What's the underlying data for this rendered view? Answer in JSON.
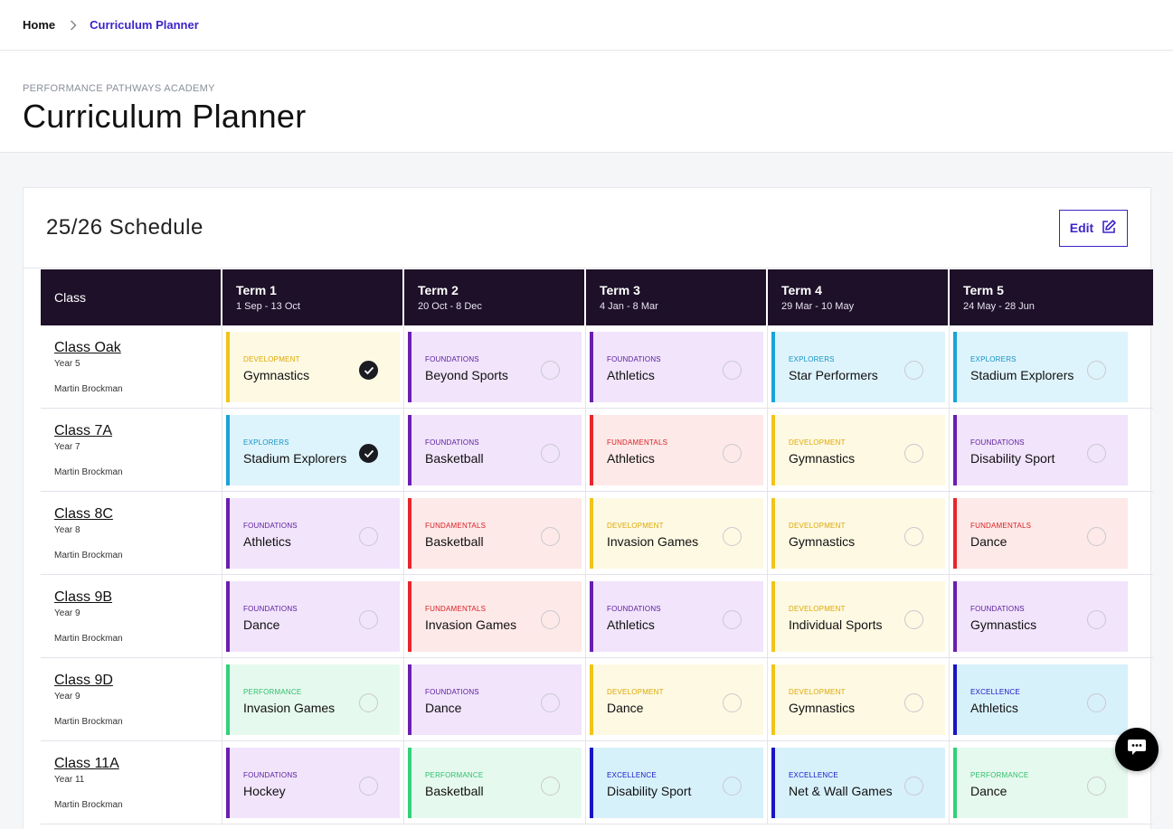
{
  "breadcrumb": {
    "home": "Home",
    "current": "Curriculum Planner"
  },
  "header": {
    "academy": "PERFORMANCE PATHWAYS ACADEMY",
    "title": "Curriculum Planner"
  },
  "schedule": {
    "title": "25/26 Schedule",
    "edit_label": "Edit"
  },
  "table": {
    "class_header": "Class",
    "terms": [
      {
        "name": "Term 1",
        "dates": "1 Sep - 13 Oct"
      },
      {
        "name": "Term 2",
        "dates": "20 Oct - 8 Dec"
      },
      {
        "name": "Term 3",
        "dates": "4 Jan - 8 Mar"
      },
      {
        "name": "Term 4",
        "dates": "29 Mar - 10 May"
      },
      {
        "name": "Term 5",
        "dates": "24 May - 28 Jun"
      }
    ],
    "rows": [
      {
        "class": "Class Oak",
        "year": "Year 5",
        "teacher": "Martin Brockman",
        "cells": [
          {
            "category": "DEVELOPMENT",
            "activity": "Gymnastics",
            "done": true
          },
          {
            "category": "FOUNDATIONS",
            "activity": "Beyond Sports",
            "done": false
          },
          {
            "category": "FOUNDATIONS",
            "activity": "Athletics",
            "done": false
          },
          {
            "category": "EXPLORERS",
            "activity": "Star Performers",
            "done": false
          },
          {
            "category": "EXPLORERS",
            "activity": "Stadium Explorers",
            "done": false
          }
        ]
      },
      {
        "class": "Class 7A",
        "year": "Year 7",
        "teacher": "Martin Brockman",
        "cells": [
          {
            "category": "EXPLORERS",
            "activity": "Stadium Explorers",
            "done": true
          },
          {
            "category": "FOUNDATIONS",
            "activity": "Basketball",
            "done": false
          },
          {
            "category": "FUNDAMENTALS",
            "activity": "Athletics",
            "done": false
          },
          {
            "category": "DEVELOPMENT",
            "activity": "Gymnastics",
            "done": false
          },
          {
            "category": "FOUNDATIONS",
            "activity": "Disability Sport",
            "done": false
          }
        ]
      },
      {
        "class": "Class 8C",
        "year": "Year 8",
        "teacher": "Martin Brockman",
        "cells": [
          {
            "category": "FOUNDATIONS",
            "activity": "Athletics",
            "done": false
          },
          {
            "category": "FUNDAMENTALS",
            "activity": "Basketball",
            "done": false
          },
          {
            "category": "DEVELOPMENT",
            "activity": "Invasion Games",
            "done": false
          },
          {
            "category": "DEVELOPMENT",
            "activity": "Gymnastics",
            "done": false
          },
          {
            "category": "FUNDAMENTALS",
            "activity": "Dance",
            "done": false
          }
        ]
      },
      {
        "class": "Class 9B",
        "year": "Year 9",
        "teacher": "Martin Brockman",
        "cells": [
          {
            "category": "FOUNDATIONS",
            "activity": "Dance",
            "done": false
          },
          {
            "category": "FUNDAMENTALS",
            "activity": "Invasion Games",
            "done": false
          },
          {
            "category": "FOUNDATIONS",
            "activity": "Athletics",
            "done": false
          },
          {
            "category": "DEVELOPMENT",
            "activity": "Individual Sports",
            "done": false
          },
          {
            "category": "FOUNDATIONS",
            "activity": "Gymnastics",
            "done": false
          }
        ]
      },
      {
        "class": "Class 9D",
        "year": "Year 9",
        "teacher": "Martin Brockman",
        "cells": [
          {
            "category": "PERFORMANCE",
            "activity": "Invasion Games",
            "done": false
          },
          {
            "category": "FOUNDATIONS",
            "activity": "Dance",
            "done": false
          },
          {
            "category": "DEVELOPMENT",
            "activity": "Dance",
            "done": false
          },
          {
            "category": "DEVELOPMENT",
            "activity": "Gymnastics",
            "done": false
          },
          {
            "category": "EXCELLENCE",
            "activity": "Athletics",
            "done": false
          }
        ]
      },
      {
        "class": "Class 11A",
        "year": "Year 11",
        "teacher": "Martin Brockman",
        "cells": [
          {
            "category": "FOUNDATIONS",
            "activity": "Hockey",
            "done": false
          },
          {
            "category": "PERFORMANCE",
            "activity": "Basketball",
            "done": false
          },
          {
            "category": "EXCELLENCE",
            "activity": "Disability Sport",
            "done": false
          },
          {
            "category": "EXCELLENCE",
            "activity": "Net & Wall Games",
            "done": false
          },
          {
            "category": "PERFORMANCE",
            "activity": "Dance",
            "done": false
          }
        ]
      }
    ]
  },
  "category_colors": {
    "DEVELOPMENT": {
      "accent": "#f0c419",
      "bg": "#fdf9e3",
      "text": "#e0a800"
    },
    "FOUNDATIONS": {
      "accent": "#6a1fb0",
      "bg": "#f1e4fb",
      "text": "#5a1a9c"
    },
    "EXPLORERS": {
      "accent": "#1aa3d9",
      "bg": "#def4fc",
      "text": "#1592c4"
    },
    "FUNDAMENTALS": {
      "accent": "#e8262b",
      "bg": "#fde9e8",
      "text": "#d91f24"
    },
    "PERFORMANCE": {
      "accent": "#33d17a",
      "bg": "#e6f9ee",
      "text": "#2fc06d"
    },
    "EXCELLENCE": {
      "accent": "#1a14c4",
      "bg": "#d7f1fb",
      "text": "#1a14c4"
    }
  },
  "icons": {
    "breadcrumb_sep": "chevron-right-icon",
    "edit": "edit-icon",
    "done": "check-icon",
    "chat": "chat-icon"
  }
}
